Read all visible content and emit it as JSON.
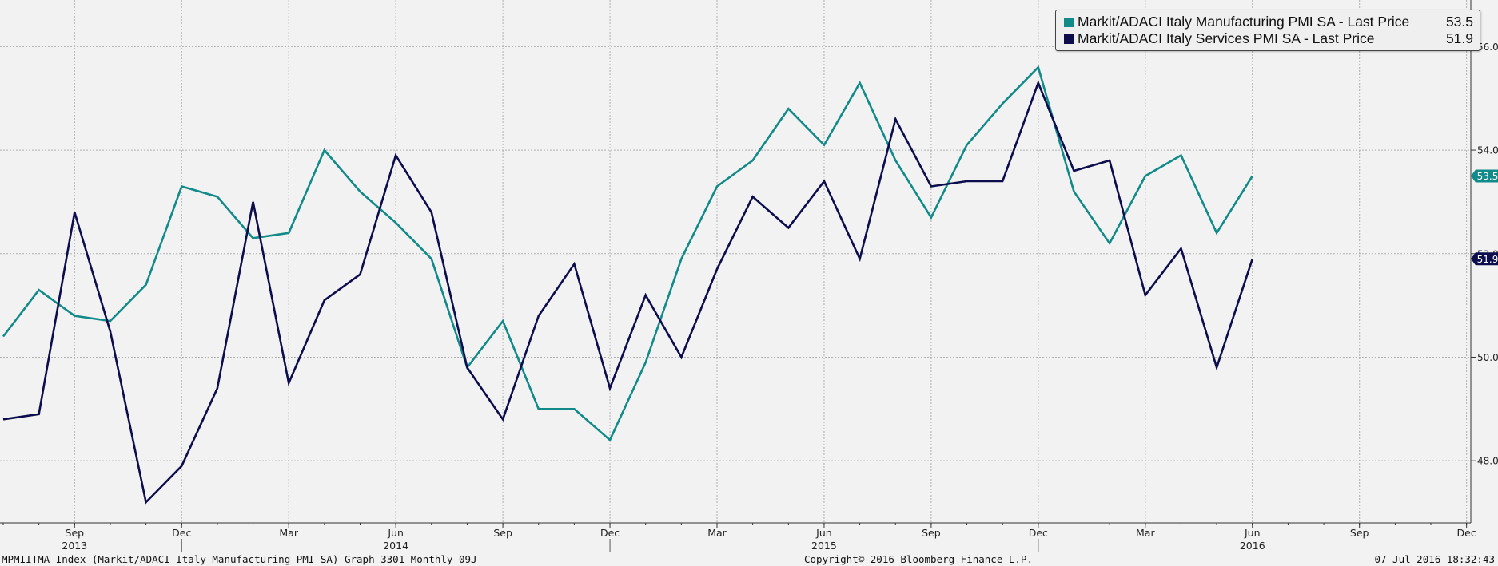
{
  "chart_data": {
    "type": "line",
    "x": [
      "2013-07",
      "2013-08",
      "2013-09",
      "2013-10",
      "2013-11",
      "2013-12",
      "2014-01",
      "2014-02",
      "2014-03",
      "2014-04",
      "2014-05",
      "2014-06",
      "2014-07",
      "2014-08",
      "2014-09",
      "2014-10",
      "2014-11",
      "2014-12",
      "2015-01",
      "2015-02",
      "2015-03",
      "2015-04",
      "2015-05",
      "2015-06",
      "2015-07",
      "2015-08",
      "2015-09",
      "2015-10",
      "2015-11",
      "2015-12",
      "2016-01",
      "2016-02",
      "2016-03",
      "2016-04",
      "2016-05",
      "2016-06"
    ],
    "series": [
      {
        "name": "Markit/ADACI Italy Manufacturing PMI SA - Last Price",
        "last_value": "53.5",
        "color": "#138a8a",
        "values": [
          50.4,
          51.3,
          50.8,
          50.7,
          51.4,
          53.3,
          53.1,
          52.3,
          52.4,
          54.0,
          53.2,
          52.6,
          51.9,
          49.8,
          50.7,
          49.0,
          49.0,
          48.4,
          49.9,
          51.9,
          53.3,
          53.8,
          54.8,
          54.1,
          55.3,
          53.8,
          52.7,
          54.1,
          54.9,
          55.6,
          53.2,
          52.2,
          53.5,
          53.9,
          52.4,
          53.5
        ]
      },
      {
        "name": "Markit/ADACI Italy Services PMI SA - Last Price",
        "last_value": "51.9",
        "color": "#0d0d4d",
        "values": [
          48.8,
          48.9,
          52.8,
          50.5,
          47.2,
          47.9,
          49.4,
          53.0,
          49.5,
          51.1,
          51.6,
          53.9,
          52.8,
          49.8,
          48.8,
          50.8,
          51.8,
          49.4,
          51.2,
          50.0,
          51.7,
          53.1,
          52.5,
          53.4,
          51.9,
          54.6,
          53.3,
          53.4,
          53.4,
          55.3,
          53.6,
          53.8,
          51.2,
          52.1,
          49.8,
          51.9
        ]
      }
    ],
    "y_ticks": [
      "48.0",
      "50.0",
      "52.0",
      "54.0",
      "56.0"
    ],
    "ylim": [
      46.8,
      56.9
    ],
    "x_tick_labels": [
      "Sep",
      "Dec",
      "Mar",
      "Jun",
      "Sep",
      "Dec",
      "Mar",
      "Jun",
      "Sep",
      "Dec",
      "Mar",
      "Jun",
      "Sep",
      "Dec"
    ],
    "x_tick_months": [
      "2013-09",
      "2013-12",
      "2014-03",
      "2014-06",
      "2014-09",
      "2014-12",
      "2015-03",
      "2015-06",
      "2015-09",
      "2015-12",
      "2016-03",
      "2016-06",
      "2016-09",
      "2016-12"
    ],
    "year_labels": [
      "2013",
      "2014",
      "2015",
      "2016"
    ],
    "year_label_months": [
      "2013-09",
      "2014-06",
      "2015-06",
      "2016-06"
    ],
    "year_separator_months": [
      "2013-12",
      "2014-12",
      "2015-12"
    ],
    "x_range": [
      "2013-07",
      "2016-12"
    ],
    "grid": true,
    "legend_position": "top-right",
    "end_labels": [
      "53.5",
      "51.9"
    ]
  },
  "footer": {
    "left": "MPMIITMA Index (Markit/ADACI Italy Manufacturing PMI SA) Graph 3301  Monthly 09J",
    "center": "Copyright© 2016 Bloomberg Finance L.P.",
    "right": "07-Jul-2016 18:32:43"
  }
}
